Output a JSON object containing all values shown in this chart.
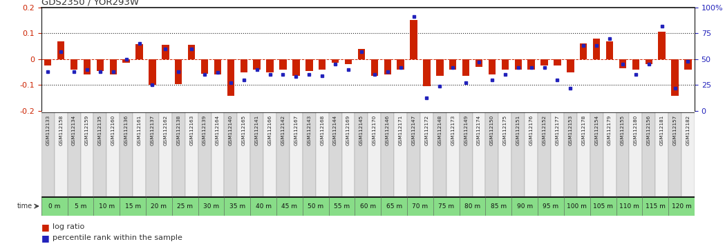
{
  "title": "GDS2350 / YOR293W",
  "gsm_labels": [
    "GSM112133",
    "GSM112158",
    "GSM112134",
    "GSM112159",
    "GSM112135",
    "GSM112160",
    "GSM112136",
    "GSM112161",
    "GSM112137",
    "GSM112162",
    "GSM112138",
    "GSM112163",
    "GSM112139",
    "GSM112164",
    "GSM112140",
    "GSM112165",
    "GSM112141",
    "GSM112166",
    "GSM112142",
    "GSM112167",
    "GSM112143",
    "GSM112168",
    "GSM112144",
    "GSM112169",
    "GSM112145",
    "GSM112170",
    "GSM112146",
    "GSM112171",
    "GSM112147",
    "GSM112172",
    "GSM112148",
    "GSM112173",
    "GSM112149",
    "GSM112174",
    "GSM112150",
    "GSM112175",
    "GSM112151",
    "GSM112176",
    "GSM112152",
    "GSM112177",
    "GSM112153",
    "GSM112178",
    "GSM112154",
    "GSM112179",
    "GSM112155",
    "GSM112180",
    "GSM112156",
    "GSM112181",
    "GSM112157",
    "GSM112182"
  ],
  "time_labels": [
    "0 m",
    "5 m",
    "10 m",
    "15 m",
    "20 m",
    "25 m",
    "30 m",
    "35 m",
    "40 m",
    "45 m",
    "50 m",
    "55 m",
    "60 m",
    "65 m",
    "70 m",
    "75 m",
    "80 m",
    "85 m",
    "90 m",
    "95 m",
    "100 m",
    "105 m",
    "110 m",
    "115 m",
    "120 m"
  ],
  "log_ratio": [
    -0.025,
    0.07,
    -0.04,
    -0.06,
    -0.045,
    -0.06,
    -0.015,
    0.058,
    -0.1,
    0.055,
    -0.095,
    0.055,
    -0.055,
    -0.06,
    -0.14,
    -0.05,
    -0.04,
    -0.05,
    -0.04,
    -0.065,
    -0.045,
    -0.04,
    -0.015,
    -0.02,
    0.04,
    -0.065,
    -0.06,
    -0.04,
    0.15,
    -0.105,
    -0.065,
    -0.04,
    -0.065,
    -0.03,
    -0.06,
    -0.04,
    -0.04,
    -0.04,
    -0.025,
    -0.025,
    -0.05,
    0.06,
    0.08,
    0.07,
    -0.035,
    -0.04,
    -0.02,
    0.105,
    -0.14,
    -0.04
  ],
  "percentile_rank": [
    38,
    57,
    38,
    40,
    38,
    38,
    50,
    65,
    25,
    60,
    38,
    60,
    35,
    37,
    27,
    30,
    40,
    35,
    35,
    33,
    35,
    34,
    45,
    40,
    57,
    35,
    38,
    42,
    91,
    13,
    24,
    42,
    27,
    47,
    30,
    35,
    42,
    42,
    42,
    30,
    22,
    63,
    63,
    70,
    45,
    35,
    45,
    82,
    22,
    48
  ],
  "ylim": [
    -0.2,
    0.2
  ],
  "bar_color": "#cc2200",
  "dot_color": "#2222bb",
  "bg_color": "#ffffff",
  "label_bg_even": "#d8d8d8",
  "label_bg_odd": "#f0f0f0",
  "time_bg_color": "#88dd88",
  "title_color": "#333333",
  "zero_line_color": "#cc2200",
  "dotted_line_color": "#222222"
}
